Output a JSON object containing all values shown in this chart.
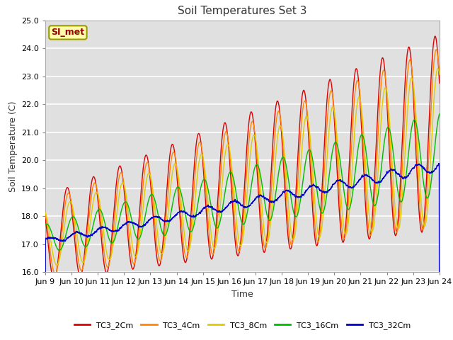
{
  "title": "Soil Temperatures Set 3",
  "xlabel": "Time",
  "ylabel": "Soil Temperature (C)",
  "xlim": [
    0,
    360
  ],
  "ylim": [
    16.0,
    25.0
  ],
  "yticks": [
    16.0,
    17.0,
    18.0,
    19.0,
    20.0,
    21.0,
    22.0,
    23.0,
    24.0,
    25.0
  ],
  "xtick_labels": [
    "Jun 9",
    "Jun 10",
    "Jun 11",
    "Jun 12",
    "Jun 13",
    "Jun 14",
    "Jun 15",
    "Jun 16",
    "Jun 17",
    "Jun 18",
    "Jun 19",
    "Jun 20",
    "Jun 21",
    "Jun 22",
    "Jun 23",
    "Jun 24"
  ],
  "xtick_positions": [
    0,
    24,
    48,
    72,
    96,
    120,
    144,
    168,
    192,
    216,
    240,
    264,
    288,
    312,
    336,
    360
  ],
  "series_colors": [
    "#dd0000",
    "#ff8800",
    "#ddcc00",
    "#00bb00",
    "#0000cc"
  ],
  "series_labels": [
    "TC3_2Cm",
    "TC3_4Cm",
    "TC3_8Cm",
    "TC3_16Cm",
    "TC3_32Cm"
  ],
  "background_color": "#ffffff",
  "plot_bg_color": "#e0e0e0",
  "grid_color": "#ffffff",
  "annotation_text": "SI_met",
  "annotation_bg": "#ffffaa",
  "annotation_border": "#999900",
  "title_fontsize": 11,
  "axis_label_fontsize": 9,
  "tick_fontsize": 8
}
